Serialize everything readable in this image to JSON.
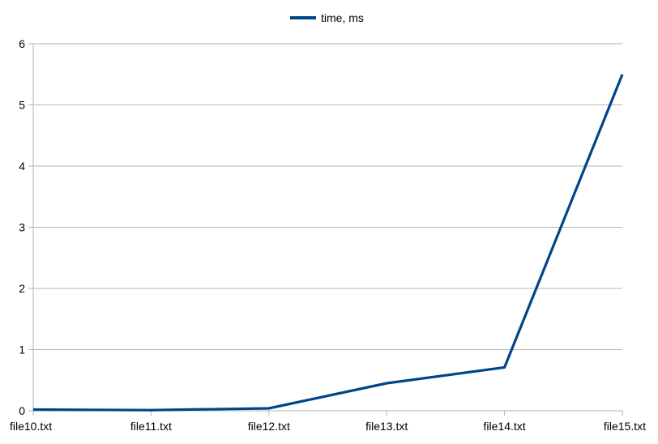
{
  "chart_data": {
    "type": "line",
    "categories": [
      "file10.txt",
      "file11.txt",
      "file12.txt",
      "file13.txt",
      "file14.txt",
      "file15.txt"
    ],
    "series": [
      {
        "name": "time, ms",
        "values": [
          0.02,
          0.01,
          0.04,
          0.45,
          0.71,
          5.5
        ],
        "color": "#004586"
      }
    ],
    "title": "",
    "xlabel": "",
    "ylabel": "",
    "ylim": [
      0,
      6
    ],
    "yticks": [
      "0",
      "1",
      "2",
      "3",
      "4",
      "5",
      "6"
    ],
    "grid": true,
    "legend_position": "top"
  }
}
